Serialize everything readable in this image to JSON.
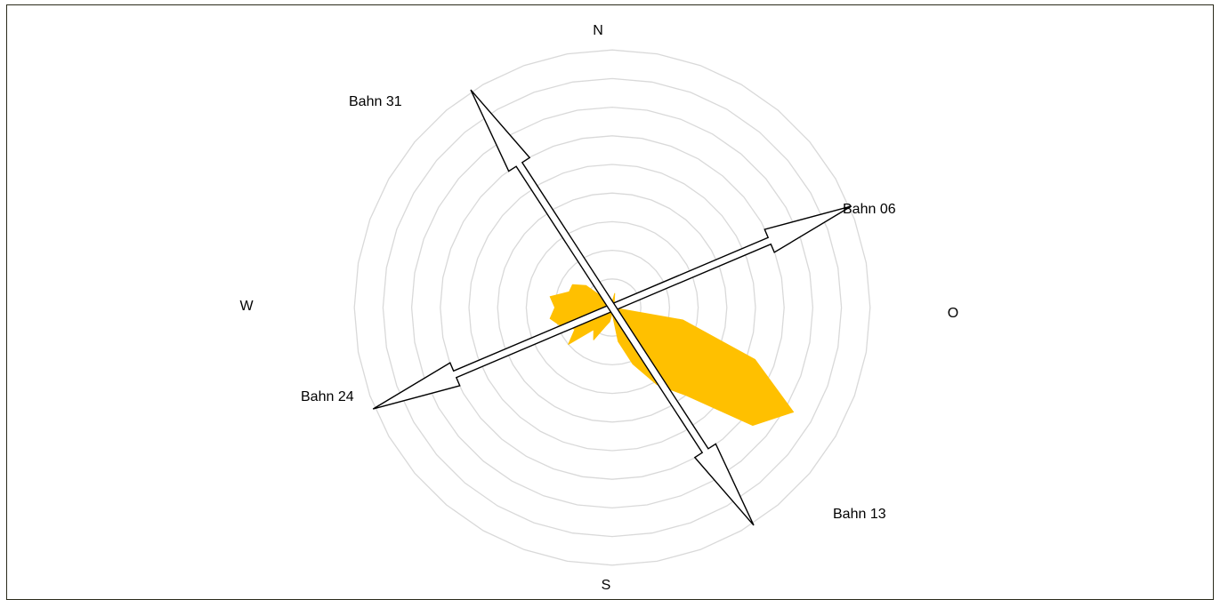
{
  "chart_data": {
    "type": "radar",
    "title": "",
    "compass_labels": {
      "north": "N",
      "east": "O",
      "south": "S",
      "west": "W"
    },
    "ring_count": 9,
    "grid": true,
    "fill_color": "#ffc000",
    "grid_color": "#d9d9d9",
    "directions_deg": [
      0,
      10,
      20,
      30,
      40,
      50,
      60,
      70,
      80,
      90,
      100,
      110,
      120,
      130,
      140,
      150,
      160,
      170,
      180,
      190,
      200,
      210,
      220,
      230,
      240,
      250,
      260,
      270,
      280,
      290,
      300,
      310,
      320,
      330,
      340,
      350
    ],
    "values": [
      0.2,
      0.5,
      0.2,
      0.2,
      0.2,
      0.2,
      0.2,
      0.2,
      0.0,
      0.0,
      2.5,
      5.3,
      7.3,
      6.4,
      4.0,
      3.1,
      2.1,
      1.2,
      0.2,
      0.5,
      0.7,
      1.3,
      1.0,
      2.0,
      1.5,
      1.9,
      2.2,
      2.0,
      2.2,
      1.6,
      1.6,
      1.2,
      0.4,
      0.5,
      0.3,
      0.1
    ],
    "runways": [
      {
        "heading_deg": 67,
        "label": "Bahn 06"
      },
      {
        "heading_deg": 247,
        "label": "Bahn 24"
      },
      {
        "heading_deg": 147,
        "label": "Bahn 13"
      },
      {
        "heading_deg": 327,
        "label": "Bahn 31"
      }
    ]
  }
}
